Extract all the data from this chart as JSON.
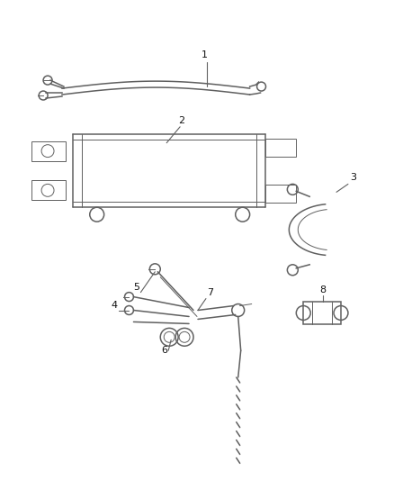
{
  "bg_color": "#ffffff",
  "line_color": "#606060",
  "label_color": "#111111",
  "fig_w": 4.38,
  "fig_h": 5.33,
  "dpi": 100
}
